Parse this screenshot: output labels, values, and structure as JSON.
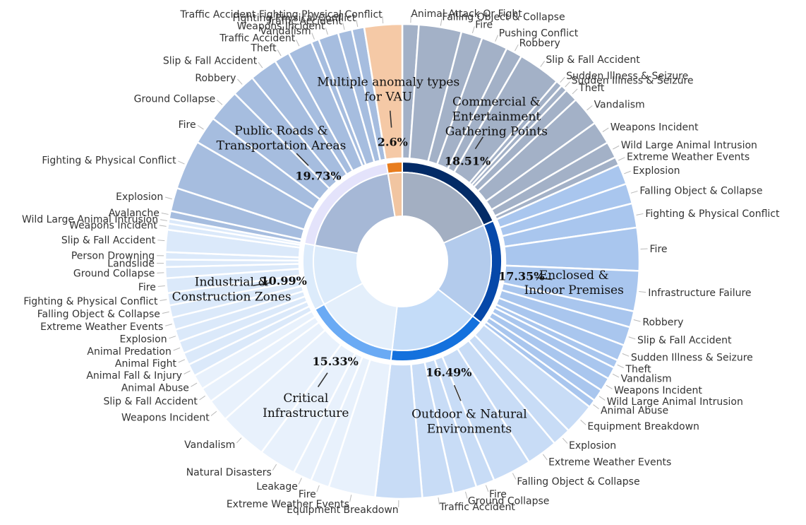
{
  "chart_data": {
    "type": "sunburst",
    "categories": [
      {
        "id": "commercial",
        "name": "Commercial & Entertainment Gathering Points",
        "name_lines": [
          "Commercial &",
          "Entertainment",
          "Gathering Points"
        ],
        "percent": 18.51,
        "percent_label": "18.51%",
        "color": "#032b66",
        "subcolor": "#a3afc2",
        "leafcolor": "#a3b1c7",
        "leaves": [
          {
            "label": "Animal Attack Or Fight",
            "weight": 1.0
          },
          {
            "label": "Falling Object & Collapse",
            "weight": 2.6
          },
          {
            "label": "Fire",
            "weight": 1.3
          },
          {
            "label": "Pushing Conflict",
            "weight": 1.6
          },
          {
            "label": "Robbery",
            "weight": 1.0
          },
          {
            "label": "Slip & Fall Accident",
            "weight": 2.6
          },
          {
            "label": "Sudden Illness & Seizure",
            "weight": 0.4
          },
          {
            "label": "Sudden Illness & Seizure",
            "weight": 0.4
          },
          {
            "label": "Theft",
            "weight": 0.8
          },
          {
            "label": "Vandalism",
            "weight": 1.8
          },
          {
            "label": "Weapons Incident",
            "weight": 1.4
          },
          {
            "label": "Wild Large Animal Intrusion",
            "weight": 1.0
          },
          {
            "label": "Extreme Weather Events",
            "weight": 0.5
          }
        ]
      },
      {
        "id": "enclosed",
        "name": "Enclosed & Indoor Premises",
        "name_lines": [
          "Enclosed &",
          "Indoor Premises"
        ],
        "percent": 17.35,
        "percent_label": "17.35%",
        "color": "#0648a9",
        "subcolor": "#b3cbec",
        "leafcolor": "#a9c6ee",
        "leaves": [
          {
            "label": "Explosion",
            "weight": 1.5
          },
          {
            "label": "Falling Object & Collapse",
            "weight": 1.5
          },
          {
            "label": "Fighting & Physical Conflict",
            "weight": 1.8
          },
          {
            "label": "Fire",
            "weight": 3.2
          },
          {
            "label": "Infrastructure Failure",
            "weight": 3.0
          },
          {
            "label": "Robbery",
            "weight": 1.2
          },
          {
            "label": "Slip & Fall Accident",
            "weight": 1.4
          },
          {
            "label": "Sudden Illness & Seizure",
            "weight": 1.2
          },
          {
            "label": "Theft",
            "weight": 0.6
          },
          {
            "label": "Vandalism",
            "weight": 0.9
          },
          {
            "label": "Weapons Incident",
            "weight": 1.0
          },
          {
            "label": "Wild Large Animal Intrusion",
            "weight": 0.9
          },
          {
            "label": "Animal Abuse",
            "weight": 0.6
          }
        ]
      },
      {
        "id": "outdoor",
        "name": "Outdoor & Natural Environments",
        "name_lines": [
          "Outdoor & Natural",
          "Environments"
        ],
        "percent": 16.49,
        "percent_label": "16.49%",
        "color": "#1471dd",
        "subcolor": "#c4dcf8",
        "leafcolor": "#c8dcf6",
        "leaves": [
          {
            "label": "Equipment Breakdown",
            "weight": 2.0
          },
          {
            "label": "Explosion",
            "weight": 1.2
          },
          {
            "label": "Extreme Weather Events",
            "weight": 2.0
          },
          {
            "label": "Falling Object & Collapse",
            "weight": 2.5
          },
          {
            "label": "Fire",
            "weight": 1.2
          },
          {
            "label": "Ground Collapse",
            "weight": 1.5
          },
          {
            "label": "Traffic Accident",
            "weight": 2.0
          },
          {
            "label": "Equipment Breakdown",
            "weight": 3.0
          }
        ]
      },
      {
        "id": "critical",
        "name": "Critical Infrastructure",
        "name_lines": [
          "Critical",
          "Infrastructure"
        ],
        "percent": 15.33,
        "percent_label": "15.33%",
        "color": "#6aaaf4",
        "subcolor": "#e4effb",
        "leafcolor": "#e8f1fc",
        "leaves": [
          {
            "label": "Extreme Weather Events",
            "weight": 2.5
          },
          {
            "label": "Fire",
            "weight": 1.0
          },
          {
            "label": "Leakage",
            "weight": 1.0
          },
          {
            "label": "Natural Disasters",
            "weight": 2.0
          },
          {
            "label": "Vandalism",
            "weight": 2.6
          },
          {
            "label": "Weapons Incident",
            "weight": 1.2
          },
          {
            "label": "Slip & Fall Accident",
            "weight": 0.8
          },
          {
            "label": "Animal Abuse",
            "weight": 0.8
          }
        ]
      },
      {
        "id": "industrial",
        "name": "Industrial & Construction Zones",
        "name_lines": [
          "Industrial &",
          "Construction Zones"
        ],
        "percent": 10.99,
        "percent_label": "10.99%",
        "color": "#dcebfb",
        "subcolor": "#dcebfb",
        "leafcolor": "#dbe9fa",
        "leaves": [
          {
            "label": "Animal Fall & Injury",
            "weight": 1.0
          },
          {
            "label": "Animal Fight",
            "weight": 1.0
          },
          {
            "label": "Animal Predation",
            "weight": 1.0
          },
          {
            "label": "Explosion",
            "weight": 1.0
          },
          {
            "label": "Extreme Weather Events",
            "weight": 1.0
          },
          {
            "label": "Falling Object & Collapse",
            "weight": 1.0
          },
          {
            "label": "Fighting & Physical Conflict",
            "weight": 1.0
          },
          {
            "label": "Fire",
            "weight": 1.2
          },
          {
            "label": "Ground Collapse",
            "weight": 0.9
          },
          {
            "label": "Landslide",
            "weight": 0.6
          },
          {
            "label": "Person Drowning",
            "weight": 0.6
          },
          {
            "label": "Slip & Fall Accident",
            "weight": 1.8
          },
          {
            "label": "Weapons Incident",
            "weight": 0.5
          },
          {
            "label": "Wild Large Animal Intrusion",
            "weight": 0.4
          }
        ]
      },
      {
        "id": "public",
        "name": "Public Roads & Transportation Areas",
        "name_lines": [
          "Public Roads &",
          "Transportation Areas"
        ],
        "percent": 19.73,
        "percent_label": "19.73%",
        "color": "#e4e3fb",
        "subcolor": "#a6b8d6",
        "leafcolor": "#a6bddf",
        "leaves": [
          {
            "label": "Avalanche",
            "weight": 0.5
          },
          {
            "label": "Explosion",
            "weight": 1.5
          },
          {
            "label": "Fighting & Physical Conflict",
            "weight": 3.2
          },
          {
            "label": "Fire",
            "weight": 1.8
          },
          {
            "label": "Ground Collapse",
            "weight": 2.1
          },
          {
            "label": "Robbery",
            "weight": 1.5
          },
          {
            "label": "Slip & Fall Accident",
            "weight": 1.8
          },
          {
            "label": "Theft",
            "weight": 1.0
          },
          {
            "label": "Traffic Accident",
            "weight": 1.6
          },
          {
            "label": "Vandalism",
            "weight": 0.5
          },
          {
            "label": "Weapons Incident",
            "weight": 1.3
          },
          {
            "label": "Traffic Accident",
            "weight": 0.9
          },
          {
            "label": "Fighting Physical Conflict",
            "weight": 0.8
          }
        ]
      },
      {
        "id": "multiple",
        "name": "Multiple anomaly types for VAU",
        "name_lines": [
          "Multiple anomaly types",
          "for VAU"
        ],
        "percent": 2.6,
        "percent_label": "2.6%",
        "color": "#e87d1e",
        "subcolor": "#f1c5a1",
        "leafcolor": "#f5c9a6",
        "leaves": [
          {
            "label": "Traffic Accident Fighting Physical Conflict",
            "weight": 1.0
          }
        ]
      }
    ]
  }
}
